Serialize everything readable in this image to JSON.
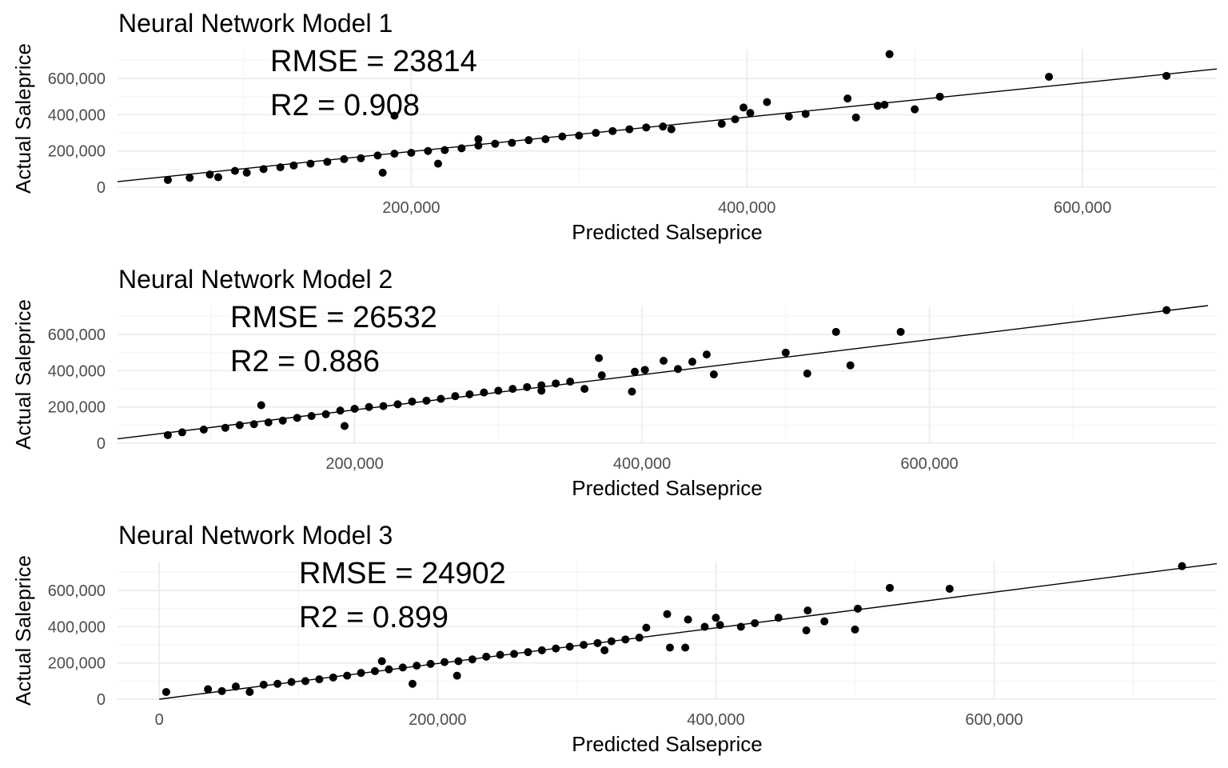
{
  "chart_data": [
    {
      "type": "scatter",
      "title": "Neural Network Model 1",
      "xlabel": "Predicted Salseprice",
      "ylabel": "Actual Saleprice",
      "annotations": [
        "RMSE = 23814",
        "R2 = 0.908"
      ],
      "xlim": [
        25000,
        680000
      ],
      "ylim": [
        0,
        760000
      ],
      "x_ticks": [
        200000,
        400000,
        600000
      ],
      "x_tick_labels": [
        "200,000",
        "400,000",
        "600,000"
      ],
      "y_ticks": [
        0,
        200000,
        400000,
        600000
      ],
      "y_tick_labels": [
        "0",
        "200,000",
        "400,000",
        "600,000"
      ],
      "grid": true,
      "fit_line": {
        "slope": 0.95,
        "intercept": 7000
      },
      "points": [
        [
          55000,
          40000
        ],
        [
          68000,
          52000
        ],
        [
          80000,
          70000
        ],
        [
          85000,
          55000
        ],
        [
          95000,
          90000
        ],
        [
          102000,
          80000
        ],
        [
          112000,
          100000
        ],
        [
          122000,
          110000
        ],
        [
          130000,
          120000
        ],
        [
          140000,
          130000
        ],
        [
          150000,
          140000
        ],
        [
          160000,
          155000
        ],
        [
          170000,
          160000
        ],
        [
          180000,
          175000
        ],
        [
          190000,
          185000
        ],
        [
          200000,
          190000
        ],
        [
          210000,
          200000
        ],
        [
          220000,
          205000
        ],
        [
          230000,
          215000
        ],
        [
          240000,
          230000
        ],
        [
          250000,
          240000
        ],
        [
          260000,
          245000
        ],
        [
          270000,
          260000
        ],
        [
          280000,
          265000
        ],
        [
          290000,
          280000
        ],
        [
          300000,
          285000
        ],
        [
          310000,
          300000
        ],
        [
          320000,
          310000
        ],
        [
          330000,
          320000
        ],
        [
          340000,
          330000
        ],
        [
          350000,
          335000
        ],
        [
          355000,
          320000
        ],
        [
          183000,
          80000
        ],
        [
          216000,
          130000
        ],
        [
          190000,
          395000
        ],
        [
          240000,
          265000
        ],
        [
          385000,
          350000
        ],
        [
          393000,
          375000
        ],
        [
          398000,
          440000
        ],
        [
          402000,
          410000
        ],
        [
          412000,
          470000
        ],
        [
          425000,
          390000
        ],
        [
          435000,
          405000
        ],
        [
          460000,
          490000
        ],
        [
          465000,
          385000
        ],
        [
          478000,
          450000
        ],
        [
          482000,
          455000
        ],
        [
          485000,
          735000
        ],
        [
          500000,
          430000
        ],
        [
          515000,
          500000
        ],
        [
          580000,
          610000
        ],
        [
          650000,
          615000
        ]
      ]
    },
    {
      "type": "scatter",
      "title": "Neural Network Model 2",
      "xlabel": "Predicted Salseprice",
      "ylabel": "Actual Saleprice",
      "annotations": [
        "RMSE = 26532",
        "R2 = 0.886"
      ],
      "xlim": [
        35000,
        800000
      ],
      "ylim": [
        0,
        760000
      ],
      "x_ticks": [
        200000,
        400000,
        600000
      ],
      "x_tick_labels": [
        "200,000",
        "400,000",
        "600,000"
      ],
      "y_ticks": [
        0,
        200000,
        400000,
        600000
      ],
      "y_tick_labels": [
        "0",
        "200,000",
        "400,000",
        "600,000"
      ],
      "grid": true,
      "fit_line": {
        "slope": 0.97,
        "intercept": -10000
      },
      "points": [
        [
          70000,
          45000
        ],
        [
          80000,
          60000
        ],
        [
          95000,
          75000
        ],
        [
          110000,
          85000
        ],
        [
          120000,
          100000
        ],
        [
          130000,
          105000
        ],
        [
          140000,
          115000
        ],
        [
          150000,
          125000
        ],
        [
          160000,
          140000
        ],
        [
          170000,
          150000
        ],
        [
          180000,
          160000
        ],
        [
          190000,
          180000
        ],
        [
          200000,
          190000
        ],
        [
          210000,
          200000
        ],
        [
          220000,
          205000
        ],
        [
          230000,
          215000
        ],
        [
          240000,
          230000
        ],
        [
          250000,
          235000
        ],
        [
          260000,
          245000
        ],
        [
          270000,
          260000
        ],
        [
          280000,
          270000
        ],
        [
          290000,
          280000
        ],
        [
          300000,
          290000
        ],
        [
          310000,
          300000
        ],
        [
          320000,
          310000
        ],
        [
          330000,
          320000
        ],
        [
          340000,
          330000
        ],
        [
          350000,
          340000
        ],
        [
          360000,
          300000
        ],
        [
          135000,
          210000
        ],
        [
          193000,
          95000
        ],
        [
          330000,
          290000
        ],
        [
          370000,
          470000
        ],
        [
          372000,
          375000
        ],
        [
          393000,
          285000
        ],
        [
          395000,
          395000
        ],
        [
          402000,
          405000
        ],
        [
          415000,
          455000
        ],
        [
          425000,
          410000
        ],
        [
          435000,
          450000
        ],
        [
          445000,
          490000
        ],
        [
          450000,
          380000
        ],
        [
          500000,
          500000
        ],
        [
          515000,
          385000
        ],
        [
          535000,
          615000
        ],
        [
          545000,
          430000
        ],
        [
          580000,
          615000
        ],
        [
          765000,
          735000
        ]
      ]
    },
    {
      "type": "scatter",
      "title": "Neural Network Model 3",
      "xlabel": "Predicted Salseprice",
      "ylabel": "Actual Saleprice",
      "annotations": [
        "RMSE = 24902",
        "R2 = 0.899"
      ],
      "xlim": [
        -30000,
        760000
      ],
      "ylim": [
        0,
        760000
      ],
      "x_ticks": [
        0,
        200000,
        400000,
        600000
      ],
      "x_tick_labels": [
        "0",
        "200,000",
        "400,000",
        "600,000"
      ],
      "y_ticks": [
        0,
        200000,
        400000,
        600000
      ],
      "y_tick_labels": [
        "0",
        "200,000",
        "400,000",
        "600,000"
      ],
      "grid": true,
      "fit_line": {
        "slope": 0.985,
        "intercept": 0
      },
      "points": [
        [
          5000,
          40000
        ],
        [
          35000,
          55000
        ],
        [
          45000,
          45000
        ],
        [
          55000,
          70000
        ],
        [
          65000,
          40000
        ],
        [
          75000,
          80000
        ],
        [
          85000,
          85000
        ],
        [
          95000,
          95000
        ],
        [
          105000,
          100000
        ],
        [
          115000,
          110000
        ],
        [
          125000,
          120000
        ],
        [
          135000,
          130000
        ],
        [
          145000,
          145000
        ],
        [
          155000,
          155000
        ],
        [
          165000,
          165000
        ],
        [
          175000,
          175000
        ],
        [
          185000,
          185000
        ],
        [
          195000,
          195000
        ],
        [
          205000,
          205000
        ],
        [
          215000,
          210000
        ],
        [
          225000,
          220000
        ],
        [
          235000,
          235000
        ],
        [
          245000,
          245000
        ],
        [
          255000,
          250000
        ],
        [
          265000,
          260000
        ],
        [
          275000,
          270000
        ],
        [
          285000,
          280000
        ],
        [
          295000,
          290000
        ],
        [
          305000,
          300000
        ],
        [
          315000,
          310000
        ],
        [
          325000,
          320000
        ],
        [
          335000,
          330000
        ],
        [
          345000,
          340000
        ],
        [
          182000,
          85000
        ],
        [
          214000,
          130000
        ],
        [
          160000,
          210000
        ],
        [
          320000,
          270000
        ],
        [
          350000,
          395000
        ],
        [
          365000,
          470000
        ],
        [
          367000,
          285000
        ],
        [
          378000,
          285000
        ],
        [
          380000,
          440000
        ],
        [
          392000,
          400000
        ],
        [
          400000,
          450000
        ],
        [
          403000,
          410000
        ],
        [
          418000,
          400000
        ],
        [
          428000,
          420000
        ],
        [
          445000,
          450000
        ],
        [
          465000,
          380000
        ],
        [
          466000,
          490000
        ],
        [
          478000,
          430000
        ],
        [
          500000,
          385000
        ],
        [
          502000,
          500000
        ],
        [
          525000,
          615000
        ],
        [
          568000,
          610000
        ],
        [
          735000,
          735000
        ]
      ]
    }
  ]
}
